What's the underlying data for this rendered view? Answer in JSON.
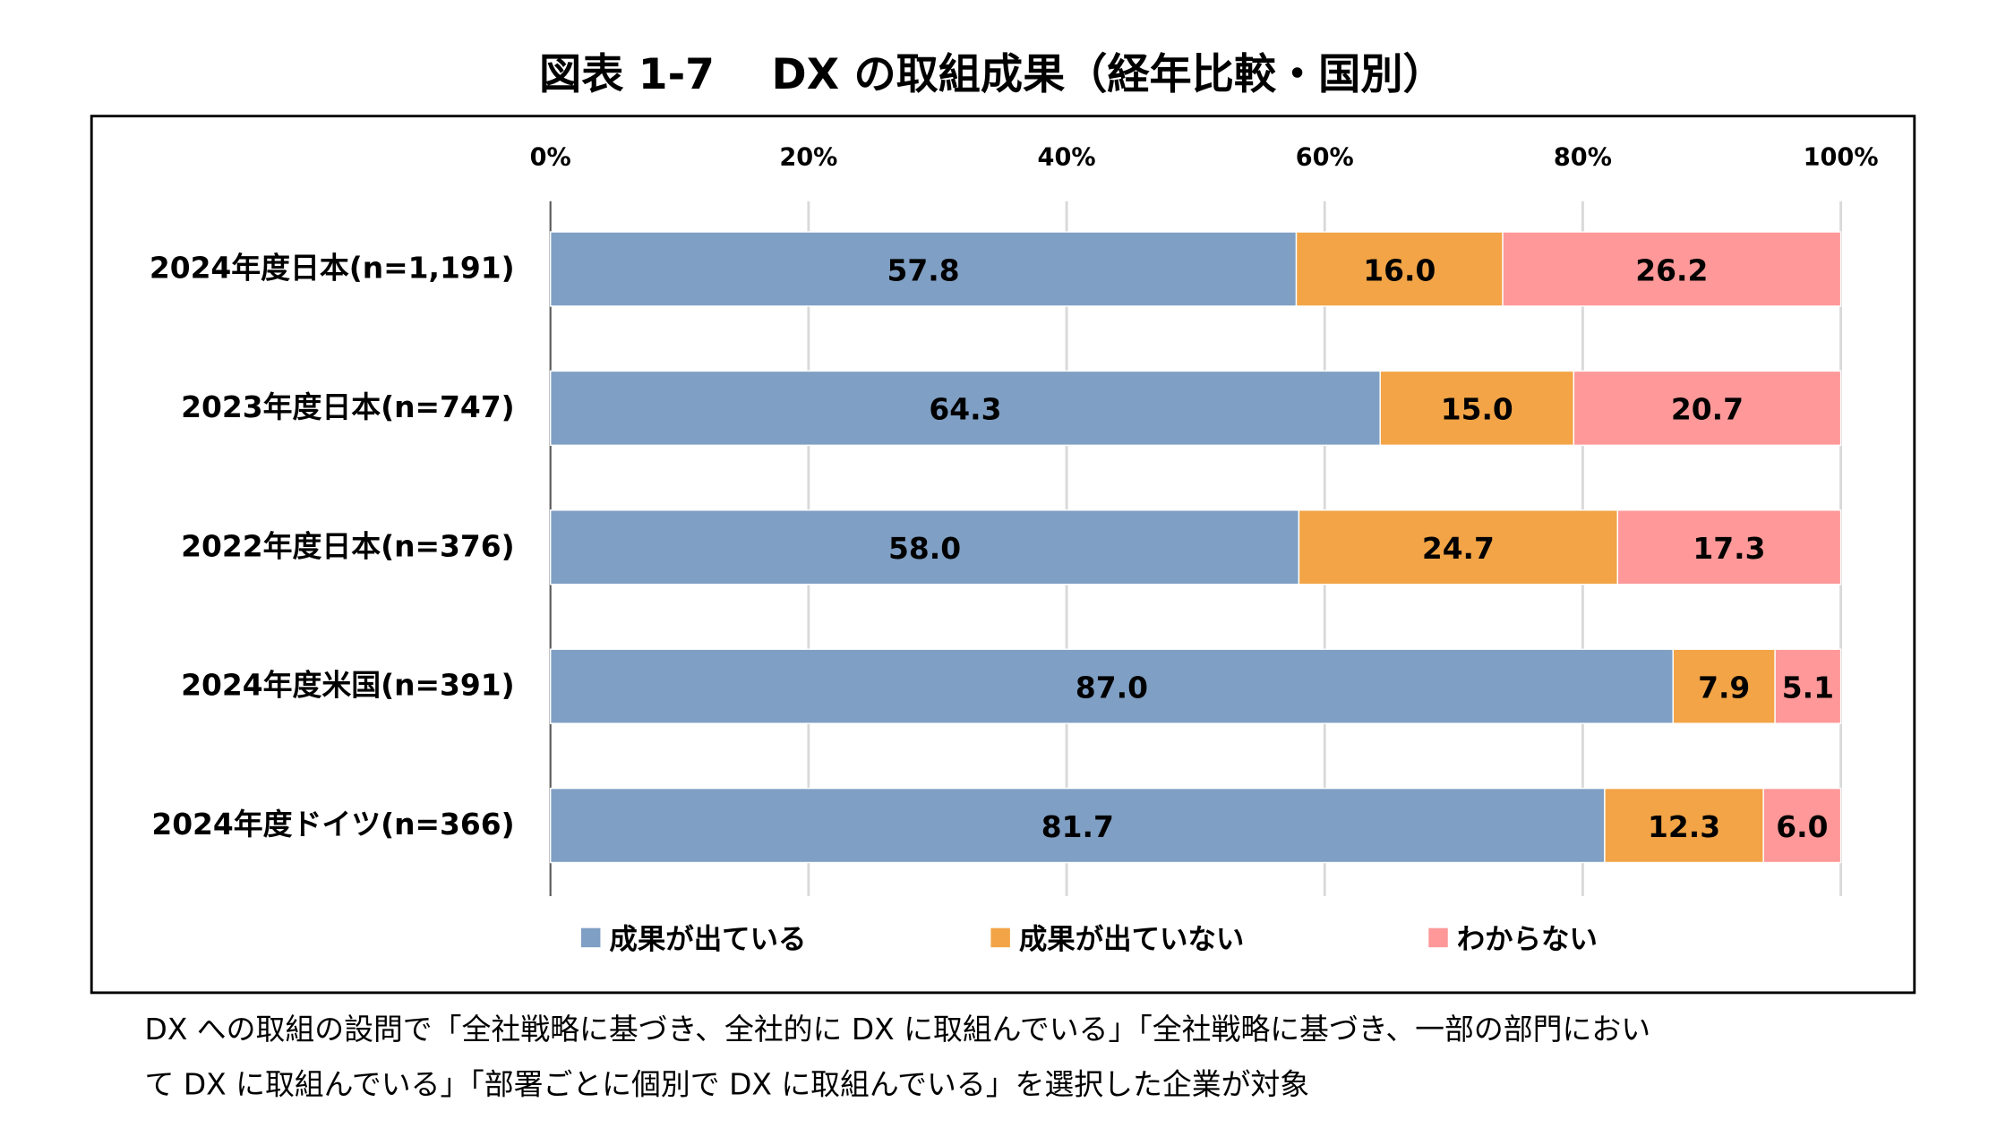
{
  "chart_data": {
    "type": "bar",
    "orientation": "horizontal",
    "stacked": true,
    "title": "図表 1-7　 DX の取組成果（経年比較・国別）",
    "categories": [
      "2024年度日本(n=1,191)",
      "2023年度日本(n=747)",
      "2022年度日本(n=376)",
      "2024年度米国(n=391)",
      "2024年度ドイツ(n=366)"
    ],
    "series": [
      {
        "name": "成果が出ている",
        "color": "#7f9fc4",
        "values": [
          57.8,
          64.3,
          58.0,
          87.0,
          81.7
        ],
        "labels": [
          "57.8",
          "64.3",
          "58.0",
          "87.0",
          "81.7"
        ]
      },
      {
        "name": "成果が出ていない",
        "color": "#f2a446",
        "values": [
          16.0,
          15.0,
          24.7,
          7.9,
          12.3
        ],
        "labels": [
          "16.0",
          "15.0",
          "24.7",
          "7.9",
          "12.3"
        ]
      },
      {
        "name": "わからない",
        "color": "#fe9899",
        "values": [
          26.2,
          20.7,
          17.3,
          5.1,
          6.0
        ],
        "labels": [
          "26.2",
          "20.7",
          "17.3",
          "5.1",
          "6.0"
        ]
      }
    ],
    "xlim": [
      0,
      100
    ],
    "xticks": [
      "0%",
      "20%",
      "40%",
      "60%",
      "80%",
      "100%"
    ],
    "xaxis_position": "top",
    "grid": true,
    "legend_position": "bottom"
  },
  "footnote": {
    "lines": [
      "DX への取組の設問で「全社戦略に基づき、全社的に DX に取組んでいる」「全社戦略に基づき、一部の部門におい",
      "て DX に取組んでいる」「部署ごとに個別で DX に取組んでいる」を選択した企業が対象"
    ]
  }
}
